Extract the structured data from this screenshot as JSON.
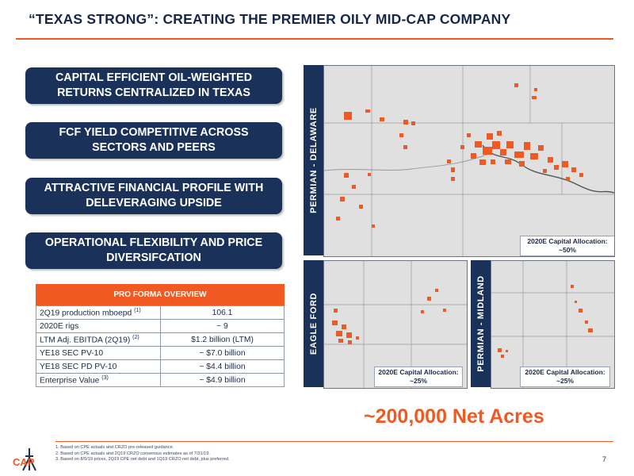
{
  "title": "“TEXAS STRONG”: CREATING THE PREMIER OILY MID-CAP COMPANY",
  "pillars": [
    {
      "line1": "CAPITAL EFFICIENT OIL-WEIGHTED",
      "line2": "RETURNS CENTRALIZED IN TEXAS"
    },
    {
      "line1": "FCF YIELD COMPETITIVE ACROSS",
      "line2": "SECTORS AND PEERS"
    },
    {
      "line1": "ATTRACTIVE FINANCIAL PROFILE WITH",
      "line2": "DELEVERAGING UPSIDE"
    },
    {
      "line1": "OPERATIONAL FLEXIBILITY AND PRICE",
      "line2": "DIVERSIFCATION"
    }
  ],
  "pro_forma": {
    "header": "PRO FORMA OVERVIEW",
    "rows": [
      {
        "label": "2Q19 production mboepd",
        "note": "(1)",
        "value": "106.1"
      },
      {
        "label": "2020E rigs",
        "note": "",
        "value": "~ 9"
      },
      {
        "label": "LTM Adj. EBITDA (2Q19)",
        "note": "(2)",
        "value": "$1.2 billion (LTM)"
      },
      {
        "label": "YE18 SEC PV-10",
        "note": "",
        "value": "~ $7.0 billion"
      },
      {
        "label": "YE18 SEC PD PV-10",
        "note": "",
        "value": "~ $4.4 billion"
      },
      {
        "label": "Enterprise Value",
        "note": "(3)",
        "value": "~ $4.9 billion"
      }
    ]
  },
  "maps": {
    "delaware": {
      "label": "PERMIAN - DELAWARE",
      "alloc_title": "2020E Capital Allocation:",
      "alloc_value": "~50%"
    },
    "eagle_ford": {
      "label": "EAGLE FORD",
      "alloc_title": "2020E Capital Allocation:",
      "alloc_value": "~25%"
    },
    "midland": {
      "label": "PERMIAN - MIDLAND",
      "alloc_title": "2020E Capital Allocation:",
      "alloc_value": "~25%"
    }
  },
  "acres": {
    "tilde": "~",
    "value": "200,000 Net Acres"
  },
  "footnotes": [
    "1.   Based on CPE actuals and CRZO pre-released guidance.",
    "2.   Based on CPE actuals and 2Q19 CRZO consensus estimates as of 7/31/19.",
    "3.   Based on 8/5/19 prices, 2Q19 CPE net debt and 1Q19 CRZO net debt, plus preferred."
  ],
  "logo_text": "CAP",
  "page_number": "7",
  "colors": {
    "navy": "#1a3259",
    "orange": "#f05a22",
    "map_bg": "#e0e0e0"
  }
}
